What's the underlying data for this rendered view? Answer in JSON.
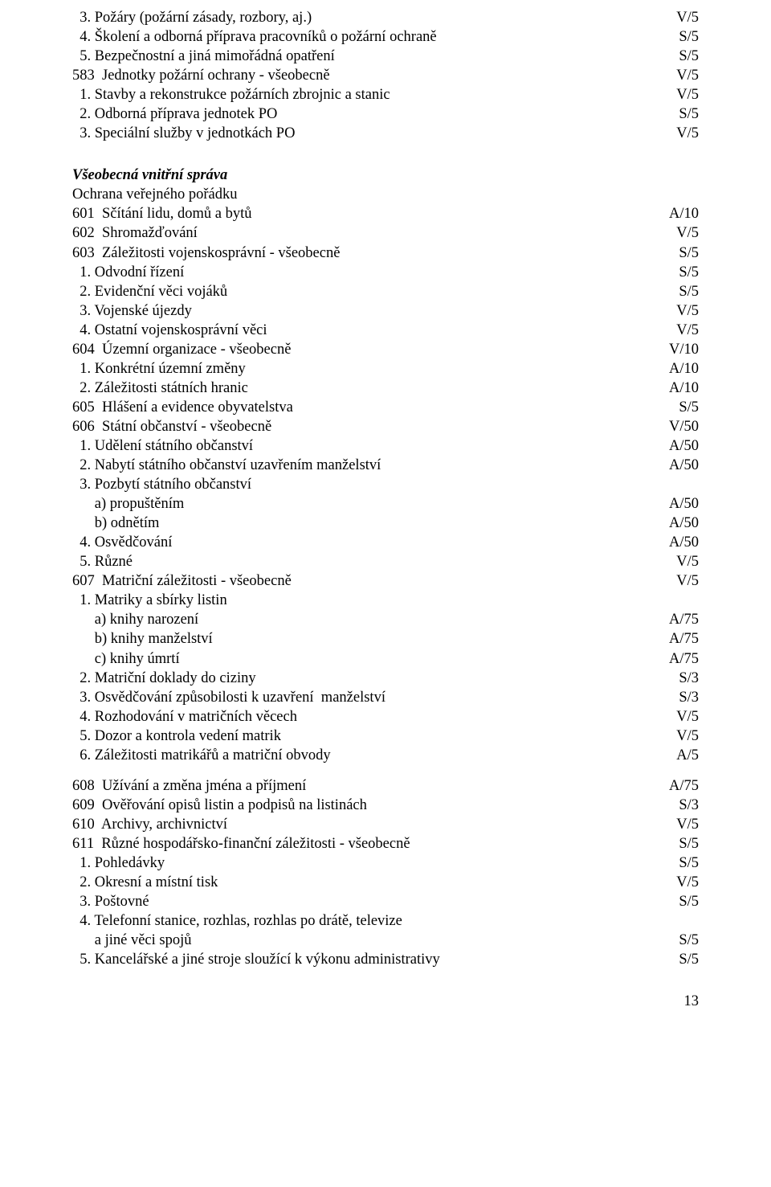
{
  "block1": [
    {
      "label": "  3. Požáry (požární zásady, rozbory, aj.)",
      "code": "V/5",
      "indent": 0
    },
    {
      "label": "  4. Školení a odborná příprava pracovníků o požární ochraně",
      "code": "S/5",
      "indent": 0
    },
    {
      "label": "  5. Bezpečnostní a jiná mimořádná opatření",
      "code": "S/5",
      "indent": 0
    },
    {
      "label": "583  Jednotky požární ochrany - všeobecně",
      "code": "V/5",
      "indent": 0
    },
    {
      "label": "  1. Stavby a rekonstrukce požárních zbrojnic a stanic",
      "code": "V/5",
      "indent": 0
    },
    {
      "label": "  2. Odborná příprava jednotek PO",
      "code": "S/5",
      "indent": 0
    },
    {
      "label": "  3. Speciální služby v jednotkách PO",
      "code": "V/5",
      "indent": 0
    }
  ],
  "sectionTitle": "Všeobecná vnitřní správa",
  "subhead": "Ochrana veřejného pořádku",
  "block2": [
    {
      "label": "601  Sčítání lidu, domů a bytů",
      "code": "A/10",
      "indent": 0
    },
    {
      "label": "602  Shromažďování",
      "code": "V/5",
      "indent": 0
    },
    {
      "label": "603  Záležitosti vojenskosprávní - všeobecně",
      "code": "S/5",
      "indent": 0
    },
    {
      "label": "  1. Odvodní řízení",
      "code": "S/5",
      "indent": 0
    },
    {
      "label": "  2. Evidenční věci vojáků",
      "code": "S/5",
      "indent": 0
    },
    {
      "label": "  3. Vojenské újezdy",
      "code": "V/5",
      "indent": 0
    },
    {
      "label": "  4. Ostatní vojenskosprávní věci",
      "code": "V/5",
      "indent": 0
    },
    {
      "label": "604  Územní organizace - všeobecně",
      "code": "V/10",
      "indent": 0
    },
    {
      "label": "  1. Konkrétní územní změny",
      "code": "A/10",
      "indent": 0
    },
    {
      "label": "  2. Záležitosti státních hranic",
      "code": "A/10",
      "indent": 0
    },
    {
      "label": "605  Hlášení a evidence obyvatelstva",
      "code": "S/5",
      "indent": 0
    },
    {
      "label": "606  Státní občanství - všeobecně",
      "code": "V/50",
      "indent": 0
    },
    {
      "label": "  1. Udělení státního občanství",
      "code": "A/50",
      "indent": 0
    },
    {
      "label": "  2. Nabytí státního občanství uzavřením manželství",
      "code": "A/50",
      "indent": 0
    },
    {
      "label": "  3. Pozbytí státního občanství",
      "code": "",
      "indent": 0
    },
    {
      "label": "      a) propuštěním",
      "code": "A/50",
      "indent": 0
    },
    {
      "label": "      b) odnětím",
      "code": "A/50",
      "indent": 0
    },
    {
      "label": "  4. Osvědčování",
      "code": "A/50",
      "indent": 0
    },
    {
      "label": "  5. Různé",
      "code": "V/5",
      "indent": 0
    },
    {
      "label": "607  Matriční záležitosti - všeobecně",
      "code": "V/5",
      "indent": 0
    },
    {
      "label": "  1. Matriky a sbírky listin",
      "code": "",
      "indent": 0
    },
    {
      "label": "      a) knihy narození",
      "code": "A/75",
      "indent": 0
    },
    {
      "label": "      b) knihy manželství",
      "code": "A/75",
      "indent": 0
    },
    {
      "label": "      c) knihy úmrtí",
      "code": "A/75",
      "indent": 0
    },
    {
      "label": "  2. Matriční doklady do ciziny",
      "code": "S/3",
      "indent": 0
    },
    {
      "label": "  3. Osvědčování způsobilosti k uzavření  manželství",
      "code": "S/3",
      "indent": 0
    },
    {
      "label": "  4. Rozhodování v matričních věcech",
      "code": "V/5",
      "indent": 0
    },
    {
      "label": "  5. Dozor a kontrola vedení matrik",
      "code": "V/5",
      "indent": 0
    },
    {
      "label": "  6. Záležitosti matrikářů a matriční obvody",
      "code": "A/5",
      "indent": 0
    }
  ],
  "block3": [
    {
      "label": "608  Užívání a změna jména a příjmení",
      "code": "A/75",
      "indent": 0
    },
    {
      "label": "609  Ověřování opisů listin a podpisů na listinách",
      "code": "S/3",
      "indent": 0
    },
    {
      "label": "610  Archivy, archivnictví",
      "code": "V/5",
      "indent": 0
    },
    {
      "label": "611  Různé hospodářsko-finanční záležitosti - všeobecně",
      "code": "S/5",
      "indent": 0
    },
    {
      "label": "  1. Pohledávky",
      "code": "S/5",
      "indent": 0
    },
    {
      "label": "  2. Okresní a místní tisk",
      "code": "V/5",
      "indent": 0
    },
    {
      "label": "  3. Poštovné",
      "code": "S/5",
      "indent": 0
    },
    {
      "label": "  4. Telefonní stanice, rozhlas, rozhlas po drátě, televize",
      "code": "",
      "indent": 0
    },
    {
      "label": "      a jiné věci spojů",
      "code": "S/5",
      "indent": 0
    },
    {
      "label": "  5. Kancelářské a jiné stroje sloužící k výkonu administrativy",
      "code": "S/5",
      "indent": 0
    }
  ],
  "pageNumber": "13"
}
